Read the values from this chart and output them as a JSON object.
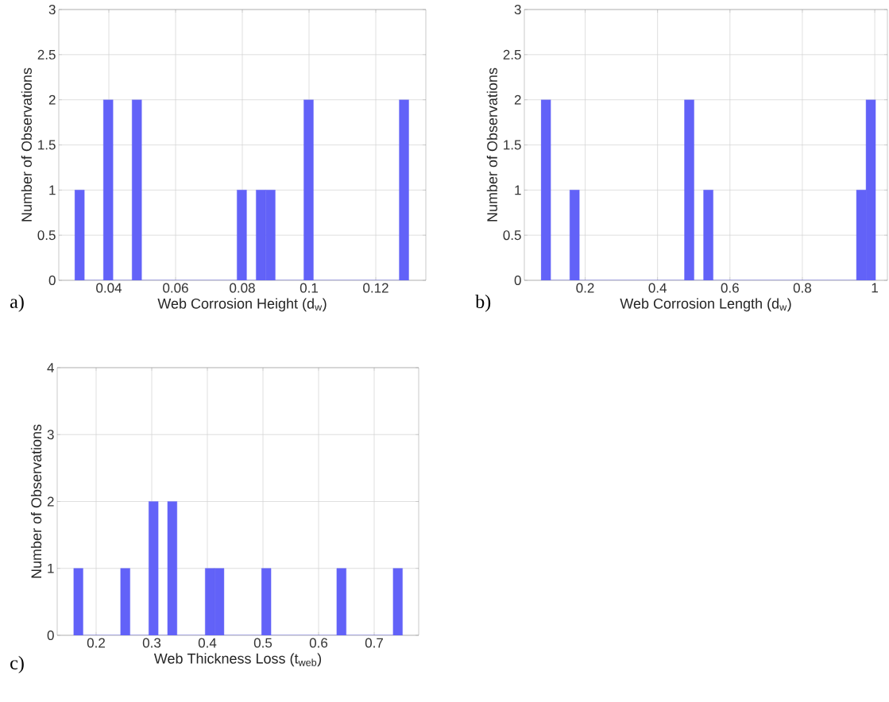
{
  "chart_data": [
    {
      "type": "histogram",
      "xlabel": "Web Corrosion Height (d$_{w}$)",
      "ylabel": "Number of Observations",
      "color": "#6262f8",
      "bins": [
        0.0298,
        0.03266,
        0.03552,
        0.03838,
        0.04124,
        0.0441,
        0.04696,
        0.04982,
        0.05268,
        0.05554,
        0.0584,
        0.06126,
        0.06412,
        0.06698,
        0.06984,
        0.0727,
        0.07556,
        0.07842,
        0.08128,
        0.08414,
        0.087,
        0.08986,
        0.09272,
        0.09558,
        0.09844,
        0.1013,
        0.10416,
        0.10702,
        0.10988,
        0.11274,
        0.1156,
        0.11846,
        0.12132,
        0.12418,
        0.12704,
        0.1299
      ],
      "values": [
        1,
        0,
        0,
        2,
        0,
        0,
        2,
        0,
        0,
        0,
        0,
        0,
        0,
        0,
        0,
        0,
        0,
        1,
        0,
        1,
        1,
        0,
        0,
        0,
        2,
        0,
        0,
        0,
        0,
        0,
        0,
        0,
        0,
        0,
        2
      ],
      "xlim": [
        0.025,
        0.135
      ],
      "ylim": [
        0,
        3
      ],
      "xticks": [
        0.04,
        0.06,
        0.08,
        0.1,
        0.12
      ],
      "yticks": [
        0,
        0.5,
        1,
        1.5,
        2,
        2.5,
        3
      ],
      "grid": true,
      "annotations": [
        "a)"
      ]
    },
    {
      "type": "histogram",
      "xlabel": "Web Corrosion Length (d$_{w}$)",
      "ylabel": "Number of Observations",
      "color": "#6262f8",
      "bins": [
        0.0783,
        0.1047,
        0.1311,
        0.1575,
        0.1839,
        0.2103,
        0.2367,
        0.2631,
        0.2895,
        0.3159,
        0.3423,
        0.3687,
        0.3951,
        0.4215,
        0.4479,
        0.4743,
        0.5007,
        0.5271,
        0.5535,
        0.5799,
        0.6063,
        0.6327,
        0.6591,
        0.6855,
        0.7119,
        0.7383,
        0.7647,
        0.7911,
        0.8175,
        0.8439,
        0.8703,
        0.8967,
        0.9231,
        0.9495,
        0.9759,
        1.0023
      ],
      "values": [
        2,
        0,
        0,
        1,
        0,
        0,
        0,
        0,
        0,
        0,
        0,
        0,
        0,
        0,
        0,
        2,
        0,
        1,
        0,
        0,
        0,
        0,
        0,
        0,
        0,
        0,
        0,
        0,
        0,
        0,
        0,
        0,
        0,
        1,
        2
      ],
      "xlim": [
        0.032,
        1.035
      ],
      "ylim": [
        0,
        3
      ],
      "xticks": [
        0.2,
        0.4,
        0.6,
        0.8,
        1
      ],
      "yticks": [
        0,
        0.5,
        1,
        1.5,
        2,
        2.5,
        3
      ],
      "grid": true,
      "annotations": [
        "b)"
      ]
    },
    {
      "type": "histogram",
      "xlabel": "Web Thickness Loss (t$_{web}$)",
      "ylabel": "Number of Observations",
      "color": "#6262f8",
      "bins": [
        0.1595,
        0.1764,
        0.1933,
        0.2102,
        0.2271,
        0.244,
        0.2609,
        0.2778,
        0.2947,
        0.3116,
        0.3285,
        0.3454,
        0.3623,
        0.3792,
        0.3961,
        0.413,
        0.4299,
        0.4468,
        0.4637,
        0.4806,
        0.4975,
        0.5144,
        0.5313,
        0.5482,
        0.5651,
        0.582,
        0.5989,
        0.6158,
        0.6327,
        0.6496,
        0.6665,
        0.6834,
        0.7003,
        0.7172,
        0.7341,
        0.751
      ],
      "values": [
        1,
        0,
        0,
        0,
        0,
        1,
        0,
        0,
        2,
        0,
        2,
        0,
        0,
        0,
        1,
        1,
        0,
        0,
        0,
        0,
        1,
        0,
        0,
        0,
        0,
        0,
        0,
        0,
        1,
        0,
        0,
        0,
        0,
        0,
        1
      ],
      "xlim": [
        0.13,
        0.78
      ],
      "ylim": [
        0,
        4
      ],
      "xticks": [
        0.2,
        0.3,
        0.4,
        0.5,
        0.6,
        0.7
      ],
      "yticks": [
        0,
        1,
        2,
        3,
        4
      ],
      "grid": true,
      "annotations": [
        "c)"
      ]
    }
  ]
}
